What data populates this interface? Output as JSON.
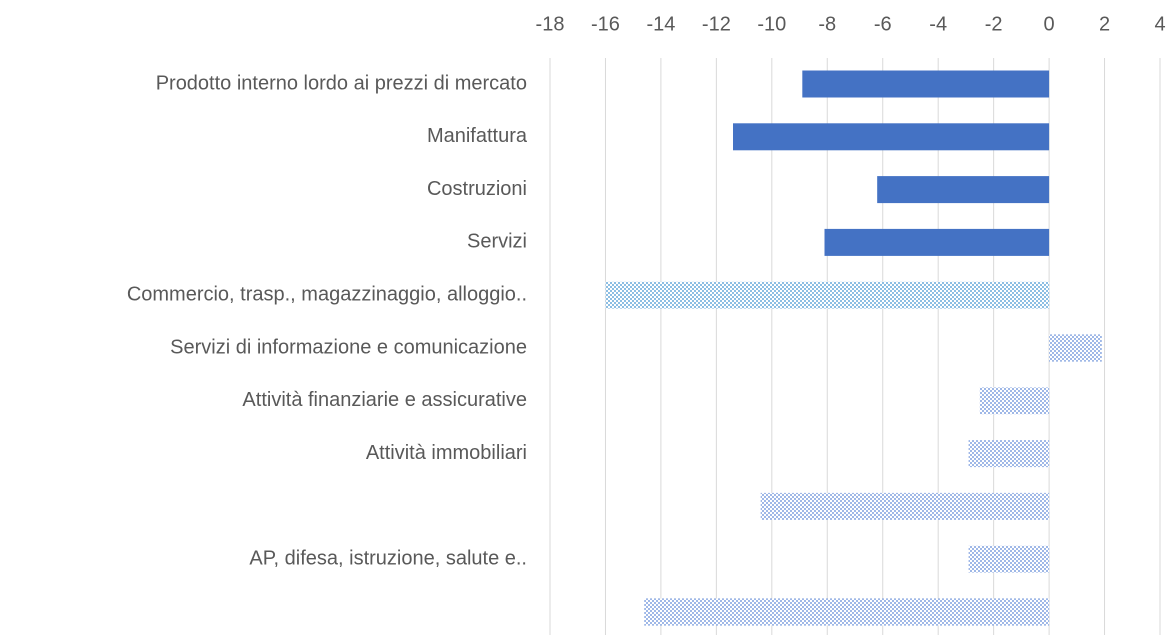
{
  "chart_data": {
    "type": "hbar",
    "categories": [
      "Prodotto interno lordo ai prezzi di mercato",
      "Manifattura",
      "Costruzioni",
      "Servizi",
      "Commercio, trasp., magazzinaggio, alloggio..",
      "Servizi di informazione e comunicazione",
      "Attività finanziarie e assicurative",
      "Attività immobiliari",
      null,
      "AP, difesa, istruzione, salute e..",
      null
    ],
    "values": [
      -8.9,
      -11.4,
      -6.2,
      -8.1,
      -16.0,
      1.9,
      -2.5,
      -2.9,
      -10.4,
      -2.9,
      -14.6
    ],
    "colors": [
      "#4472c4",
      "#4472c4",
      "#4472c4",
      "#4472c4",
      "#3a8fd0",
      "#5b86d6",
      "#5b86d6",
      "#5b86d6",
      "#5b86d6",
      "#5b86d6",
      "#5b86d6"
    ],
    "styles": [
      "solid",
      "solid",
      "solid",
      "solid",
      "dotted",
      "dotted",
      "dotted",
      "dotted",
      "dotted",
      "dotted",
      "dotted"
    ],
    "xlim": [
      -18,
      4
    ],
    "xticks": [
      -18,
      -16,
      -14,
      -12,
      -10,
      -8,
      -6,
      -4,
      -2,
      0,
      2,
      4
    ],
    "grid": true
  }
}
